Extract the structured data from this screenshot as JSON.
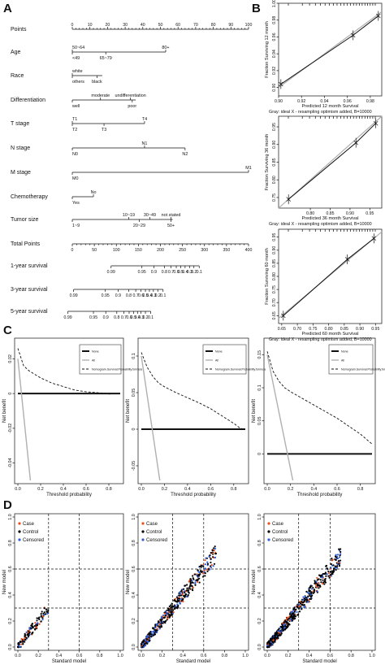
{
  "panels": {
    "a": "A",
    "b": "B",
    "c": "C",
    "d": "D"
  },
  "nomogram": {
    "rows": [
      {
        "label": "Points",
        "ticks": [
          "0",
          "10",
          "20",
          "30",
          "40",
          "50",
          "60",
          "70",
          "80",
          "90",
          "100"
        ],
        "tick_values": [
          0,
          10,
          20,
          30,
          40,
          50,
          60,
          70,
          80,
          90,
          100
        ],
        "axis_max": 100
      },
      {
        "label": "Age",
        "levels": [
          {
            "text": "50~64",
            "v": 0,
            "pos": "top"
          },
          {
            "text": "80+",
            "v": 53,
            "pos": "top"
          },
          {
            "text": "<49",
            "v": 0,
            "pos": "bottom"
          },
          {
            "text": "65~79",
            "v": 19,
            "pos": "bottom"
          }
        ],
        "range": [
          0,
          53
        ]
      },
      {
        "label": "Race",
        "levels": [
          {
            "text": "white",
            "v": 0,
            "pos": "top"
          },
          {
            "text": "others",
            "v": 0,
            "pos": "bottom"
          },
          {
            "text": "black",
            "v": 14,
            "pos": "bottom"
          }
        ],
        "range": [
          0,
          17
        ]
      },
      {
        "label": "Differentiation",
        "levels": [
          {
            "text": "moderate",
            "v": 16,
            "pos": "top"
          },
          {
            "text": "undifferentiation",
            "v": 33,
            "pos": "top"
          },
          {
            "text": "well",
            "v": 0,
            "pos": "bottom"
          },
          {
            "text": "poor",
            "v": 34,
            "pos": "bottom"
          }
        ],
        "range": [
          0,
          36
        ]
      },
      {
        "label": "T stage",
        "levels": [
          {
            "text": "T1",
            "v": 0,
            "pos": "top"
          },
          {
            "text": "T4",
            "v": 41,
            "pos": "top"
          },
          {
            "text": "T2",
            "v": 0,
            "pos": "bottom"
          },
          {
            "text": "T3",
            "v": 18,
            "pos": "bottom"
          }
        ],
        "range": [
          0,
          41
        ]
      },
      {
        "label": "N stage",
        "levels": [
          {
            "text": "N1",
            "v": 41,
            "pos": "top"
          },
          {
            "text": "N0",
            "v": 0,
            "pos": "bottom"
          },
          {
            "text": "N2",
            "v": 64,
            "pos": "bottom"
          }
        ],
        "range": [
          0,
          64
        ]
      },
      {
        "label": "M stage",
        "levels": [
          {
            "text": "M1",
            "v": 100,
            "pos": "top"
          },
          {
            "text": "M0",
            "v": 0,
            "pos": "bottom"
          }
        ],
        "range": [
          0,
          100
        ]
      },
      {
        "label": "Chemotherapy",
        "levels": [
          {
            "text": "No",
            "v": 12,
            "pos": "top"
          },
          {
            "text": "Yes",
            "v": 0,
            "pos": "bottom"
          }
        ],
        "range": [
          0,
          12
        ]
      },
      {
        "label": "Tumor size",
        "levels": [
          {
            "text": "10~19",
            "v": 32,
            "pos": "top"
          },
          {
            "text": "30~49",
            "v": 44,
            "pos": "top"
          },
          {
            "text": "not stated",
            "v": 56,
            "pos": "top"
          },
          {
            "text": "1~9",
            "v": 0,
            "pos": "bottom"
          },
          {
            "text": "20~29",
            "v": 38,
            "pos": "bottom"
          },
          {
            "text": "50+",
            "v": 56,
            "pos": "bottom"
          }
        ],
        "range": [
          0,
          57
        ]
      },
      {
        "label": "Total Points",
        "ticks": [
          "0",
          "50",
          "100",
          "150",
          "200",
          "250",
          "300",
          "350",
          "400"
        ],
        "tick_values": [
          0,
          50,
          100,
          150,
          200,
          250,
          300,
          350,
          400
        ],
        "axis_max": 400
      },
      {
        "label": "1-year survival",
        "ticks": [
          "0.99",
          "0.95",
          "0.9",
          "0.8",
          "0.7",
          "0.6",
          "0.5",
          "0.4",
          "0.3",
          "0.2",
          "0.1"
        ],
        "tick_totals": [
          88,
          158,
          185,
          209,
          224,
          236,
          246,
          256,
          266,
          276,
          288
        ]
      },
      {
        "label": "3-year survival",
        "ticks": [
          "0.99",
          "0.95",
          "0.9",
          "0.8",
          "0.7",
          "0.6",
          "0.5",
          "0.4",
          "0.3",
          "0.2",
          "0.1"
        ],
        "tick_totals": [
          3,
          75,
          104,
          128,
          144,
          156,
          166,
          175,
          184,
          194,
          206
        ]
      },
      {
        "label": "5-year survival",
        "ticks": [
          "0.99",
          "0.95",
          "0.9",
          "0.8",
          "0.7",
          "0.6",
          "0.5",
          "0.4",
          "0.3",
          "0.2",
          "0.1"
        ],
        "tick_totals": [
          -10,
          48,
          76,
          101,
          117,
          129,
          139,
          148,
          156,
          166,
          178
        ]
      }
    ]
  },
  "calibration": [
    {
      "ylabel": "Fraction Surviving 12 month",
      "xlabel": "Predicted  12 month Survival",
      "footer": "Gray: ideal   X - resampling optimism added, B=10000",
      "xticks": [
        "0.90",
        "0.92",
        "0.94",
        "0.96",
        "0.98"
      ],
      "yticks": [
        "0.90",
        "0.92",
        "0.94",
        "0.96",
        "0.98",
        "1.00"
      ]
    },
    {
      "ylabel": "Fraction Surviving 36 month",
      "xlabel": "Predicted  36 month Survival",
      "footer": "Gray: ideal   X - resampling optimism added, B=10000",
      "xticks": [
        "0.80",
        "0.85",
        "0.90",
        "0.95"
      ],
      "yticks": [
        "0.75",
        "0.80",
        "0.85",
        "0.90",
        "0.95"
      ]
    },
    {
      "ylabel": "Fraction Surviving 60 month",
      "xlabel": "Predicted  60 month Survival",
      "footer": "Gray: ideal   X - resampling optimism added, B=10000",
      "xticks": [
        "0.65",
        "0.70",
        "0.75",
        "0.80",
        "0.85",
        "0.90",
        "0.95"
      ],
      "yticks": [
        "0.65",
        "0.70",
        "0.75",
        "0.80",
        "0.85",
        "0.90",
        "0.95"
      ]
    }
  ],
  "dca": [
    {
      "yticks": [
        "-0.04",
        "-0.02",
        "0",
        "0.02"
      ],
      "xticks": [
        "0.0",
        "0.2",
        "0.4",
        "0.6",
        "0.8"
      ],
      "xlabel": "Threshold probability",
      "ylabel": "Net benefit",
      "legend": [
        "None",
        "All",
        "Nomogram.Survival.Probability.formula"
      ]
    },
    {
      "yticks": [
        "-0.05",
        "0",
        "0.05",
        "0.1"
      ],
      "xticks": [
        "0.0",
        "0.2",
        "0.4",
        "0.6",
        "0.8"
      ],
      "xlabel": "Threshold probability",
      "ylabel": "Net benefit",
      "legend": [
        "None",
        "All",
        "Nomogram.Survival.Probability.formula"
      ]
    },
    {
      "yticks": [
        "0",
        "0.05",
        "0.1",
        "0.15"
      ],
      "xticks": [
        "0.0",
        "0.2",
        "0.4",
        "0.6",
        "0.8"
      ],
      "xlabel": "Threshold probability",
      "ylabel": "Net benefit",
      "legend": [
        "None",
        "All",
        "Nomogram.Survival.Probability.formula"
      ]
    }
  ],
  "nri": [
    {
      "xlabel": "Standard model",
      "ylabel": "New model",
      "legend": [
        "Case",
        "Control",
        "Censored"
      ],
      "xticks": [
        "0.0",
        "0.2",
        "0.4",
        "0.6",
        "0.8",
        "1.0"
      ],
      "yticks": [
        "0.0",
        "0.2",
        "0.4",
        "0.6",
        "0.8",
        "1.0"
      ]
    },
    {
      "xlabel": "Standard model",
      "ylabel": "New model",
      "legend": [
        "Case",
        "Control",
        "Censored"
      ],
      "xticks": [
        "0.0",
        "0.2",
        "0.4",
        "0.6",
        "0.8",
        "1.0"
      ],
      "yticks": [
        "0.0",
        "0.2",
        "0.4",
        "0.6",
        "0.8",
        "1.0"
      ]
    },
    {
      "xlabel": "Standard model",
      "ylabel": "New model",
      "legend": [
        "Case",
        "Control",
        "Censored"
      ],
      "xticks": [
        "0.0",
        "0.2",
        "0.4",
        "0.6",
        "0.8",
        "1.0"
      ],
      "yticks": [
        "0.0",
        "0.2",
        "0.4",
        "0.6",
        "0.8",
        "1.0"
      ]
    }
  ],
  "chart_data": [
    {
      "type": "line",
      "name": "calibration-12-month",
      "x": [
        0.902,
        0.965,
        0.987
      ],
      "y": [
        0.904,
        0.962,
        0.985
      ],
      "xlim": [
        0.9,
        0.99
      ],
      "ylim": [
        0.89,
        1.0
      ]
    },
    {
      "type": "line",
      "name": "calibration-36-month",
      "x": [
        0.745,
        0.915,
        0.965
      ],
      "y": [
        0.745,
        0.905,
        0.96
      ],
      "xlim": [
        0.72,
        0.98
      ],
      "ylim": [
        0.72,
        0.98
      ]
    },
    {
      "type": "line",
      "name": "calibration-60-month",
      "x": [
        0.655,
        0.86,
        0.945
      ],
      "y": [
        0.65,
        0.865,
        0.945
      ],
      "xlim": [
        0.64,
        0.97
      ],
      "ylim": [
        0.62,
        0.98
      ]
    },
    {
      "type": "line",
      "name": "dca-1",
      "xlim": [
        0,
        0.9
      ],
      "ylim": [
        -0.05,
        0.03
      ],
      "series": [
        {
          "name": "None",
          "x": [
            0,
            0.9
          ],
          "y": [
            0,
            0
          ]
        },
        {
          "name": "All",
          "x": [
            0,
            0.11
          ],
          "y": [
            0.02,
            -0.05
          ]
        },
        {
          "name": "Nomogram.Survival.Probability.formula",
          "x": [
            0,
            0.05,
            0.1,
            0.15,
            0.2,
            0.3,
            0.4,
            0.5,
            0.6,
            0.7,
            0.8,
            0.85
          ],
          "y": [
            0.026,
            0.016,
            0.013,
            0.011,
            0.009,
            0.006,
            0.004,
            0.002,
            0.001,
            0.0005,
            -0.0003,
            0
          ]
        }
      ]
    },
    {
      "type": "line",
      "name": "dca-2",
      "xlim": [
        0,
        0.9
      ],
      "ylim": [
        -0.07,
        0.12
      ],
      "series": [
        {
          "name": "None",
          "x": [
            0,
            0.9
          ],
          "y": [
            0,
            0
          ]
        },
        {
          "name": "All",
          "x": [
            0,
            0.16
          ],
          "y": [
            0.1,
            -0.07
          ]
        },
        {
          "name": "Nomogram.Survival.Probability.formula",
          "x": [
            0,
            0.05,
            0.1,
            0.15,
            0.2,
            0.3,
            0.4,
            0.5,
            0.6,
            0.7,
            0.8,
            0.85,
            0.88
          ],
          "y": [
            0.105,
            0.085,
            0.072,
            0.063,
            0.058,
            0.05,
            0.043,
            0.036,
            0.028,
            0.018,
            0.008,
            0.002,
            0
          ]
        }
      ]
    },
    {
      "type": "line",
      "name": "dca-3",
      "xlim": [
        0,
        0.9
      ],
      "ylim": [
        -0.04,
        0.17
      ],
      "series": [
        {
          "name": "None",
          "x": [
            0,
            0.9
          ],
          "y": [
            0,
            0
          ]
        },
        {
          "name": "All",
          "x": [
            0,
            0.22
          ],
          "y": [
            0.15,
            -0.04
          ]
        },
        {
          "name": "Nomogram.Survival.Probability.formula",
          "x": [
            0,
            0.05,
            0.1,
            0.15,
            0.2,
            0.3,
            0.4,
            0.5,
            0.6,
            0.7,
            0.8,
            0.9
          ],
          "y": [
            0.155,
            0.125,
            0.11,
            0.1,
            0.094,
            0.084,
            0.074,
            0.064,
            0.054,
            0.042,
            0.03,
            0.015
          ]
        }
      ]
    }
  ],
  "colors": {
    "case": "#e8501c",
    "control": "#000000",
    "censored": "#2f5fd8",
    "gray": "#b0b0b0"
  }
}
